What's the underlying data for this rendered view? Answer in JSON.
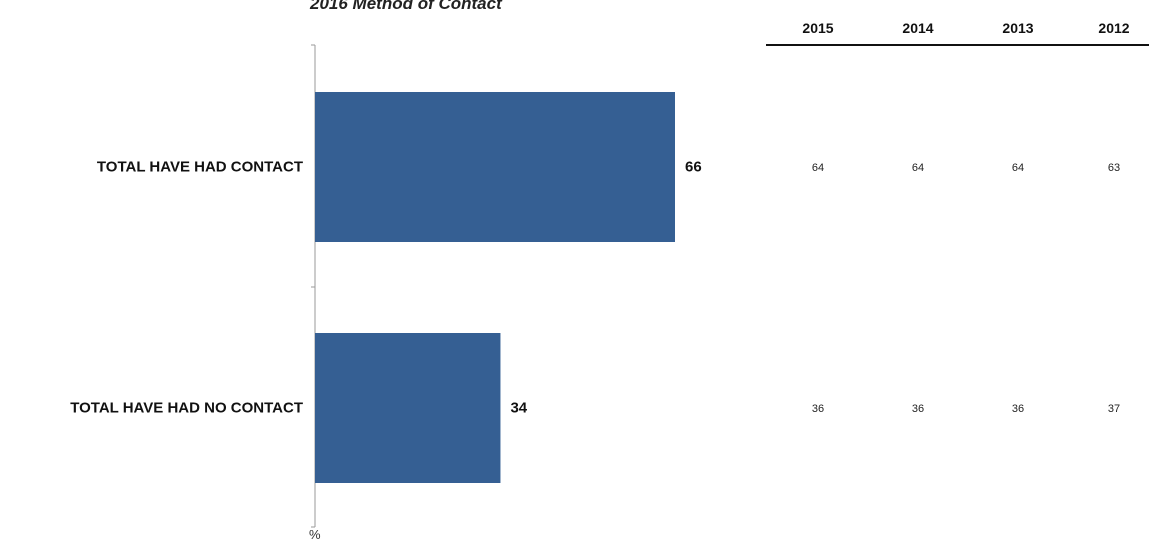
{
  "chart_data": {
    "type": "bar",
    "orientation": "horizontal",
    "title": "2016 Method of Contact",
    "xlabel": "%",
    "ylabel": "",
    "xlim": [
      0,
      100
    ],
    "categories": [
      "TOTAL HAVE HAD CONTACT",
      "TOTAL HAVE HAD NO CONTACT"
    ],
    "values": [
      66,
      34
    ],
    "data_labels": [
      "66",
      "34"
    ],
    "bar_color": "#355f93",
    "grid": false,
    "legend": "none"
  },
  "history_table": {
    "years": [
      "2015",
      "2014",
      "2013",
      "2012"
    ],
    "rows": [
      [
        "64",
        "64",
        "64",
        "63"
      ],
      [
        "36",
        "36",
        "36",
        "37"
      ]
    ]
  }
}
